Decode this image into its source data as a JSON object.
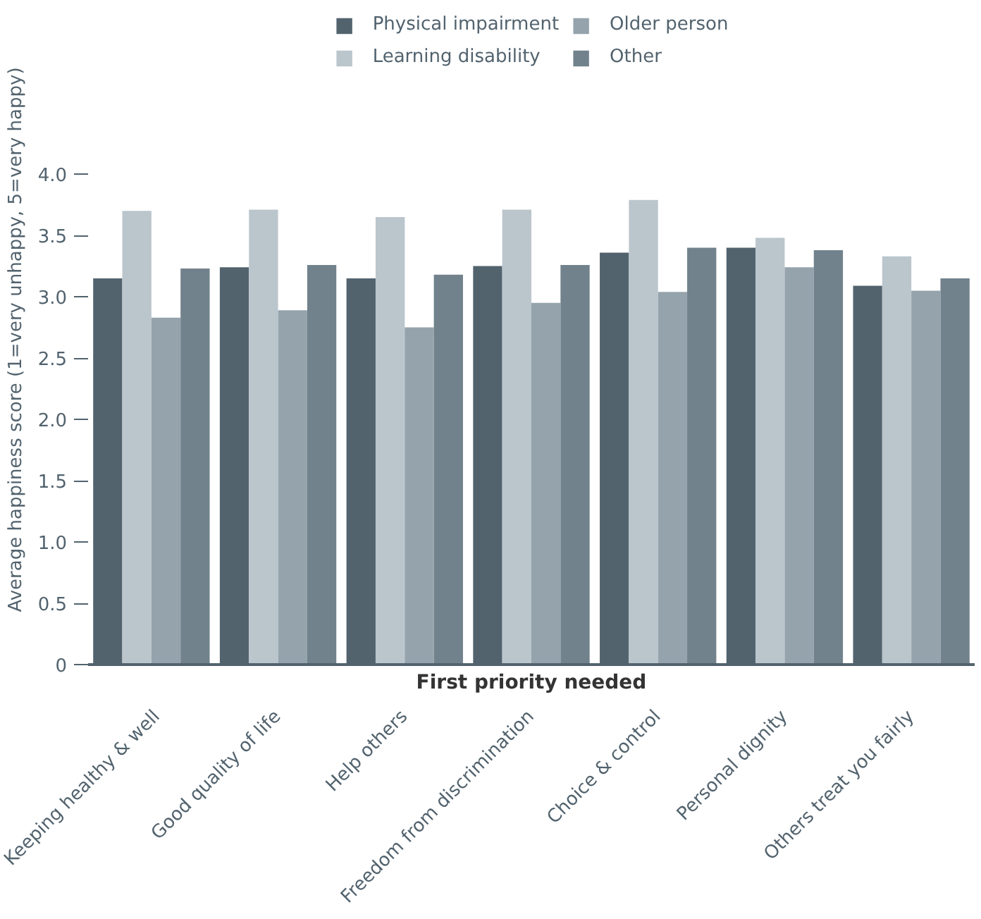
{
  "chart_data": {
    "type": "bar",
    "xlabel": "First priority needed",
    "ylabel": "Average happiness score (1=very unhappy, 5=very happy)",
    "categories": [
      "Keeping healthy & well",
      "Good quality of life",
      "Help others",
      "Freedom from discrimination",
      "Choice & control",
      "Personal dignity",
      "Others treat you fairly"
    ],
    "series": [
      {
        "name": "Physical impairment",
        "color": "#52636e",
        "values": [
          3.15,
          3.24,
          3.15,
          3.25,
          3.36,
          3.4,
          3.09
        ]
      },
      {
        "name": "Learning disability",
        "color": "#bac5cc",
        "values": [
          3.7,
          3.71,
          3.65,
          3.71,
          3.79,
          3.48,
          3.33
        ]
      },
      {
        "name": "Older person",
        "color": "#95a3ac",
        "values": [
          2.83,
          2.89,
          2.75,
          2.95,
          3.04,
          3.24,
          3.05
        ]
      },
      {
        "name": "Other",
        "color": "#71828c",
        "values": [
          3.23,
          3.26,
          3.18,
          3.26,
          3.4,
          3.38,
          3.15
        ]
      }
    ],
    "ylim": [
      0,
      5.3
    ],
    "yticks": [
      0,
      {
        "value": 0.5,
        "label": "0.5"
      },
      {
        "value": 1.0,
        "label": "1.0"
      },
      {
        "value": 1.5,
        "label": "1.5"
      },
      {
        "value": 2.0,
        "label": "2.0"
      },
      {
        "value": 2.5,
        "label": "2.5"
      },
      {
        "value": 3.0,
        "label": "3.0"
      },
      {
        "value": 3.5,
        "label": "3.5"
      },
      {
        "value": 4.0,
        "label": "4.0"
      }
    ],
    "grid": false,
    "legend": "top"
  }
}
